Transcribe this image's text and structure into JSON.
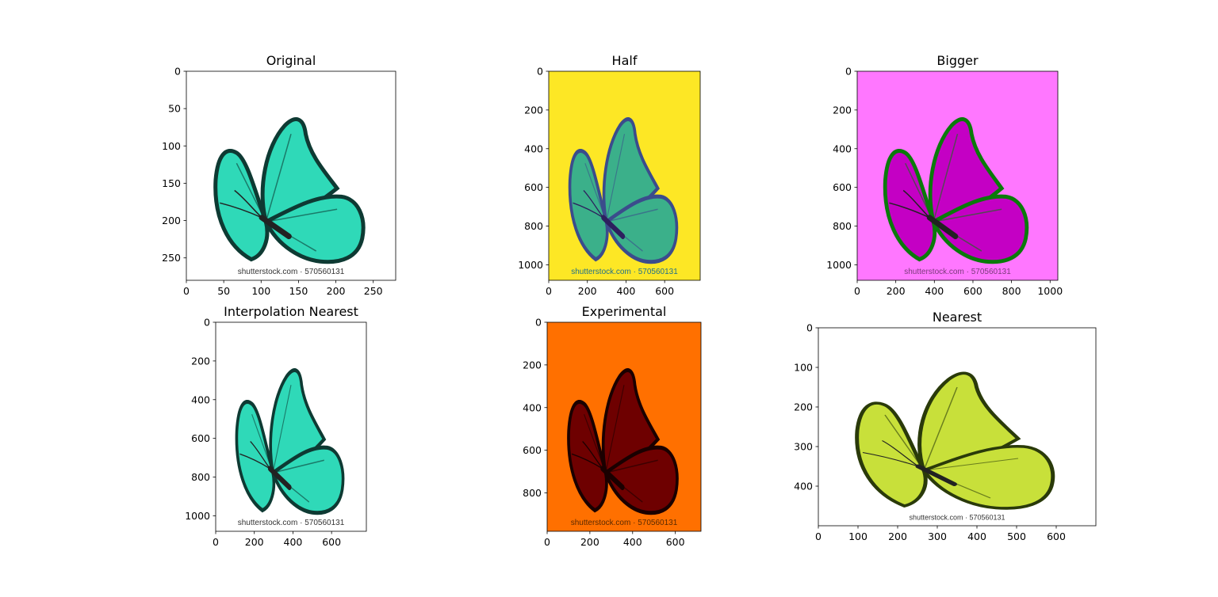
{
  "chart_data": [
    {
      "type": "image",
      "title": "Original",
      "xlim": [
        0,
        280
      ],
      "ylim": [
        280,
        0
      ],
      "xticks": [
        0,
        50,
        100,
        150,
        200,
        250
      ],
      "yticks": [
        0,
        50,
        100,
        150,
        200,
        250
      ],
      "background": "#ffffff",
      "wing_color": "#2fd9b8",
      "wing_edge": "#0e3a33",
      "body_color": "#222222",
      "watermark": "shutterstock.com · 570560131",
      "watermark_color": "#333333"
    },
    {
      "type": "image",
      "title": "Half",
      "xlim": [
        0,
        784
      ],
      "ylim": [
        1080,
        0
      ],
      "xticks": [
        0,
        200,
        400,
        600
      ],
      "yticks": [
        0,
        200,
        400,
        600,
        800,
        1000
      ],
      "background": "#fde725",
      "wing_color": "#3bb08a",
      "wing_edge": "#3b4c8c",
      "body_color": "#2d1f5e",
      "watermark": "shutterstock.com · 570560131",
      "watermark_color": "#1f6e8c"
    },
    {
      "type": "image",
      "title": "Bigger",
      "xlim": [
        0,
        1040
      ],
      "ylim": [
        1080,
        0
      ],
      "xticks": [
        0,
        200,
        400,
        600,
        800,
        1000
      ],
      "yticks": [
        0,
        200,
        400,
        600,
        800,
        1000
      ],
      "background": "#ff77ff",
      "wing_color": "#c400c4",
      "wing_edge": "#0a7a0a",
      "body_color": "#222222",
      "watermark": "shutterstock.com · 570560131",
      "watermark_color": "#7a3a7a"
    },
    {
      "type": "image",
      "title": "Interpolation Nearest",
      "xlim": [
        0,
        780
      ],
      "ylim": [
        1080,
        0
      ],
      "xticks": [
        0,
        200,
        400,
        600
      ],
      "yticks": [
        0,
        200,
        400,
        600,
        800,
        1000
      ],
      "background": "#ffffff",
      "wing_color": "#2fd9b8",
      "wing_edge": "#0e3a33",
      "body_color": "#222222",
      "watermark": "shutterstock.com · 570560131",
      "watermark_color": "#333333"
    },
    {
      "type": "image",
      "title": "Experimental",
      "xlim": [
        0,
        720
      ],
      "ylim": [
        980,
        0
      ],
      "xticks": [
        0,
        200,
        400,
        600
      ],
      "yticks": [
        0,
        200,
        400,
        600,
        800
      ],
      "background": "#ff7000",
      "wing_color": "#6e0000",
      "wing_edge": "#1a0000",
      "body_color": "#1a0000",
      "watermark": "shutterstock.com · 570560131",
      "watermark_color": "#5a2a00"
    },
    {
      "type": "image",
      "title": "Nearest",
      "xlim": [
        0,
        700
      ],
      "ylim": [
        500,
        0
      ],
      "xticks": [
        0,
        100,
        200,
        300,
        400,
        500,
        600
      ],
      "yticks": [
        0,
        100,
        200,
        300,
        400
      ],
      "background": "#ffffff",
      "wing_color": "#c8e03a",
      "wing_edge": "#2a3a0a",
      "body_color": "#222222",
      "watermark": "shutterstock.com · 570560131",
      "watermark_color": "#333333"
    }
  ]
}
